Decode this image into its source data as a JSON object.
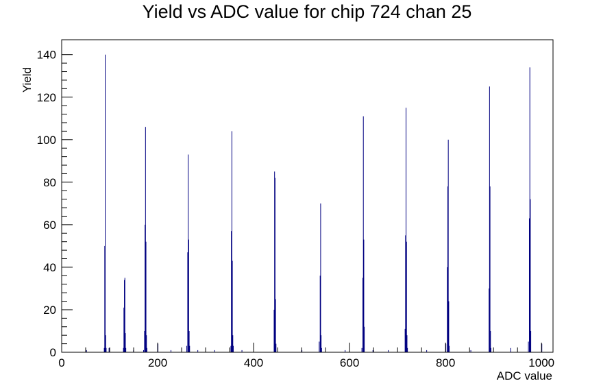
{
  "chart_data": {
    "type": "bar",
    "title": "Yield vs ADC value for chip 724 chan 25",
    "xlabel": "ADC value",
    "ylabel": "Yield",
    "xlim": [
      0,
      1024
    ],
    "ylim": [
      0,
      147
    ],
    "x_ticks": [
      "0",
      "200",
      "400",
      "600",
      "800",
      "1000"
    ],
    "y_ticks": [
      "0",
      "20",
      "40",
      "60",
      "80",
      "100",
      "120",
      "140"
    ],
    "grid": false,
    "legend": "none",
    "color": "#000080",
    "bins": [
      {
        "x": 51,
        "y": 1
      },
      {
        "x": 88,
        "y": 2
      },
      {
        "x": 89,
        "y": 50
      },
      {
        "x": 90,
        "y": 140
      },
      {
        "x": 91,
        "y": 8
      },
      {
        "x": 92,
        "y": 2
      },
      {
        "x": 98,
        "y": 2
      },
      {
        "x": 128,
        "y": 2
      },
      {
        "x": 129,
        "y": 21
      },
      {
        "x": 130,
        "y": 34
      },
      {
        "x": 131,
        "y": 35
      },
      {
        "x": 132,
        "y": 9
      },
      {
        "x": 133,
        "y": 2
      },
      {
        "x": 149,
        "y": 1
      },
      {
        "x": 170,
        "y": 1
      },
      {
        "x": 172,
        "y": 10
      },
      {
        "x": 173,
        "y": 60
      },
      {
        "x": 174,
        "y": 106
      },
      {
        "x": 175,
        "y": 52
      },
      {
        "x": 176,
        "y": 8
      },
      {
        "x": 177,
        "y": 2
      },
      {
        "x": 200,
        "y": 4
      },
      {
        "x": 227,
        "y": 1
      },
      {
        "x": 260,
        "y": 3
      },
      {
        "x": 262,
        "y": 47
      },
      {
        "x": 263,
        "y": 93
      },
      {
        "x": 264,
        "y": 53
      },
      {
        "x": 265,
        "y": 10
      },
      {
        "x": 266,
        "y": 3
      },
      {
        "x": 283,
        "y": 1
      },
      {
        "x": 318,
        "y": 1
      },
      {
        "x": 352,
        "y": 3
      },
      {
        "x": 353,
        "y": 57
      },
      {
        "x": 354,
        "y": 104
      },
      {
        "x": 355,
        "y": 43
      },
      {
        "x": 356,
        "y": 8
      },
      {
        "x": 357,
        "y": 3
      },
      {
        "x": 375,
        "y": 1
      },
      {
        "x": 442,
        "y": 20
      },
      {
        "x": 443,
        "y": 85
      },
      {
        "x": 444,
        "y": 82
      },
      {
        "x": 445,
        "y": 25
      },
      {
        "x": 446,
        "y": 4
      },
      {
        "x": 500,
        "y": 1
      },
      {
        "x": 536,
        "y": 5
      },
      {
        "x": 538,
        "y": 36
      },
      {
        "x": 539,
        "y": 70
      },
      {
        "x": 540,
        "y": 8
      },
      {
        "x": 541,
        "y": 2
      },
      {
        "x": 590,
        "y": 1
      },
      {
        "x": 625,
        "y": 2
      },
      {
        "x": 627,
        "y": 35
      },
      {
        "x": 628,
        "y": 111
      },
      {
        "x": 629,
        "y": 53
      },
      {
        "x": 630,
        "y": 12
      },
      {
        "x": 648,
        "y": 1
      },
      {
        "x": 680,
        "y": 1
      },
      {
        "x": 715,
        "y": 11
      },
      {
        "x": 716,
        "y": 55
      },
      {
        "x": 717,
        "y": 115
      },
      {
        "x": 718,
        "y": 52
      },
      {
        "x": 719,
        "y": 8
      },
      {
        "x": 720,
        "y": 2
      },
      {
        "x": 760,
        "y": 1
      },
      {
        "x": 800,
        "y": 4
      },
      {
        "x": 803,
        "y": 40
      },
      {
        "x": 804,
        "y": 78
      },
      {
        "x": 805,
        "y": 100
      },
      {
        "x": 806,
        "y": 24
      },
      {
        "x": 807,
        "y": 3
      },
      {
        "x": 852,
        "y": 1
      },
      {
        "x": 890,
        "y": 30
      },
      {
        "x": 891,
        "y": 125
      },
      {
        "x": 892,
        "y": 78
      },
      {
        "x": 893,
        "y": 10
      },
      {
        "x": 894,
        "y": 2
      },
      {
        "x": 935,
        "y": 2
      },
      {
        "x": 972,
        "y": 5
      },
      {
        "x": 974,
        "y": 63
      },
      {
        "x": 975,
        "y": 134
      },
      {
        "x": 976,
        "y": 72
      },
      {
        "x": 977,
        "y": 10
      },
      {
        "x": 1000,
        "y": 4
      }
    ]
  }
}
